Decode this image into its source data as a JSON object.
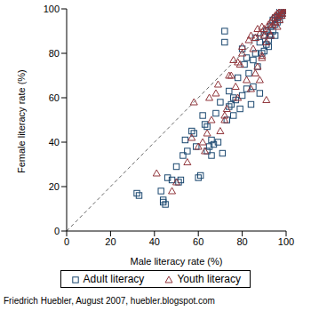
{
  "chart_data": {
    "type": "scatter",
    "x_label": "Male literacy rate (%)",
    "y_label": "Female literacy rate (%)",
    "source": "Friedrich Huebler, August 2007, huebler.blogspot.com",
    "xlim": [
      0,
      100
    ],
    "ylim": [
      0,
      100
    ],
    "xticks": [
      0,
      20,
      40,
      60,
      80,
      100
    ],
    "yticks": [
      0,
      20,
      40,
      60,
      80,
      100
    ],
    "grid": false,
    "legend": "bottom",
    "series": [
      {
        "name": "Adult literacy",
        "color": "#1a476f",
        "marker": "square",
        "x": [
          32,
          33,
          43,
          44,
          45,
          44,
          46,
          48,
          50,
          51,
          52,
          53,
          54,
          55,
          57,
          58,
          59,
          60,
          61,
          62,
          63,
          64,
          65,
          66,
          67,
          68,
          69,
          70,
          71,
          72,
          72,
          73,
          74,
          75,
          76,
          77,
          78,
          79,
          80,
          80,
          81,
          82,
          83,
          84,
          85,
          85,
          86,
          87,
          88,
          88,
          89,
          90,
          91,
          91,
          92,
          92,
          93,
          93,
          94,
          94,
          95,
          95,
          96,
          96,
          97,
          97,
          98,
          98,
          99,
          99,
          100,
          97,
          95,
          90,
          86,
          82,
          76,
          74,
          66,
          64
        ],
        "values": [
          17,
          16,
          18,
          13,
          12,
          14,
          24,
          23,
          29,
          22,
          23,
          34,
          41,
          36,
          45,
          44,
          38,
          24,
          25,
          52,
          48,
          36,
          38,
          34,
          39,
          53,
          40,
          58,
          35,
          85,
          90,
          50,
          63,
          57,
          60,
          59,
          69,
          55,
          82,
          61,
          75,
          78,
          71,
          57,
          65,
          77,
          87,
          74,
          85,
          62,
          80,
          81,
          84,
          90,
          86,
          83,
          88,
          92,
          90,
          95,
          93,
          88,
          94,
          96,
          95,
          97,
          97,
          98,
          98,
          99,
          100,
          99,
          96,
          88,
          80,
          64,
          52,
          56,
          41,
          47
        ]
      },
      {
        "name": "Youth literacy",
        "color": "#90353b",
        "marker": "triangle",
        "x": [
          41,
          48,
          50,
          55,
          57,
          58,
          60,
          62,
          63,
          64,
          66,
          68,
          69,
          70,
          72,
          73,
          75,
          76,
          78,
          79,
          80,
          82,
          83,
          84,
          85,
          86,
          87,
          88,
          89,
          90,
          91,
          91,
          92,
          93,
          94,
          95,
          96,
          97,
          97,
          98,
          98,
          99,
          99,
          100,
          96,
          95,
          94,
          93,
          92,
          90,
          89,
          88,
          86,
          84,
          80,
          78,
          77,
          74,
          72,
          65,
          87,
          89,
          96,
          97,
          98,
          99
        ],
        "values": [
          26,
          18,
          22,
          31,
          42,
          58,
          38,
          40,
          36,
          44,
          50,
          62,
          66,
          45,
          52,
          55,
          70,
          77,
          60,
          75,
          80,
          68,
          86,
          64,
          82,
          71,
          91,
          68,
          79,
          88,
          59,
          85,
          90,
          88,
          93,
          94,
          96,
          97,
          95,
          98,
          97,
          99,
          100,
          100,
          98,
          97,
          96,
          94,
          93,
          91,
          92,
          89,
          87,
          88,
          83,
          76,
          65,
          70,
          50,
          60,
          74,
          78,
          92,
          99,
          100,
          98
        ]
      }
    ]
  }
}
